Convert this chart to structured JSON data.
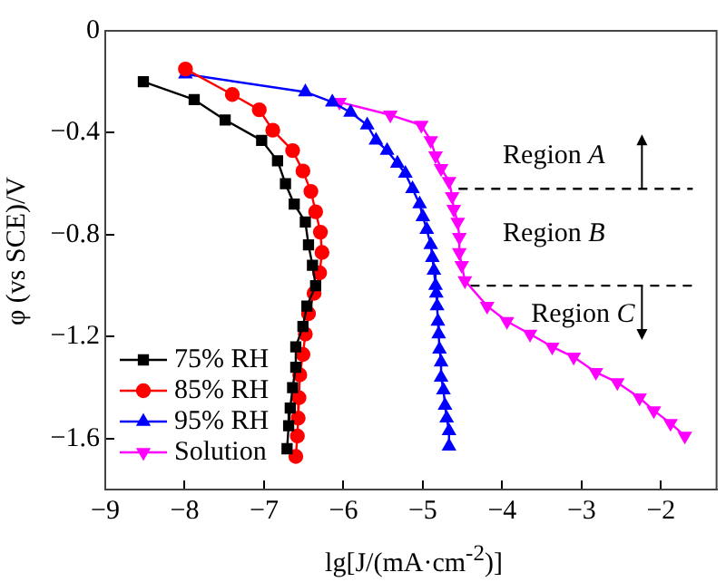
{
  "chart_data": {
    "type": "line",
    "xlabel": "lg[J/(mA·cm$^{-2}$)]",
    "ylabel": "φ (vs SCE)/V",
    "xlim": [
      -9,
      -1.3
    ],
    "xticks": [
      -9,
      -8,
      -7,
      -6,
      -5,
      -4,
      -3,
      -2
    ],
    "ylim": [
      -1.8,
      0
    ],
    "yticks": [
      0,
      -0.4,
      -0.8,
      -1.2,
      -1.6
    ],
    "grid": false,
    "legend": "bottom left",
    "series": [
      {
        "name": "75% RH",
        "color": "#000000",
        "marker": "square",
        "x": [
          -8.52,
          -7.88,
          -7.49,
          -7.03,
          -6.83,
          -6.73,
          -6.62,
          -6.48,
          -6.44,
          -6.39,
          -6.35,
          -6.46,
          -6.51,
          -6.6,
          -6.6,
          -6.64,
          -6.67,
          -6.69,
          -6.71
        ],
        "values": [
          -0.2,
          -0.27,
          -0.35,
          -0.43,
          -0.51,
          -0.6,
          -0.68,
          -0.75,
          -0.84,
          -0.92,
          -1.0,
          -1.08,
          -1.16,
          -1.24,
          -1.32,
          -1.4,
          -1.48,
          -1.55,
          -1.64
        ]
      },
      {
        "name": "85% RH",
        "color": "#ff0000",
        "marker": "circle",
        "x": [
          -7.99,
          -7.4,
          -7.06,
          -6.89,
          -6.64,
          -6.51,
          -6.41,
          -6.35,
          -6.29,
          -6.27,
          -6.3,
          -6.37,
          -6.44,
          -6.48,
          -6.51,
          -6.55,
          -6.56,
          -6.57,
          -6.58,
          -6.6
        ],
        "values": [
          -0.15,
          -0.25,
          -0.31,
          -0.39,
          -0.47,
          -0.55,
          -0.63,
          -0.71,
          -0.79,
          -0.87,
          -0.95,
          -1.03,
          -1.11,
          -1.19,
          -1.27,
          -1.35,
          -1.44,
          -1.52,
          -1.59,
          -1.67
        ]
      },
      {
        "name": "95% RH",
        "color": "#0000ff",
        "marker": "triangle",
        "x": [
          -7.99,
          -6.48,
          -6.14,
          -5.91,
          -5.7,
          -5.59,
          -5.45,
          -5.32,
          -5.22,
          -5.13,
          -5.04,
          -5.0,
          -4.95,
          -4.9,
          -4.88,
          -4.86,
          -4.84,
          -4.83,
          -4.82,
          -4.81,
          -4.8,
          -4.79,
          -4.77,
          -4.77,
          -4.74,
          -4.72,
          -4.7,
          -4.67,
          -4.67
        ],
        "values": [
          -0.17,
          -0.24,
          -0.28,
          -0.32,
          -0.37,
          -0.43,
          -0.47,
          -0.52,
          -0.56,
          -0.62,
          -0.68,
          -0.73,
          -0.78,
          -0.84,
          -0.89,
          -0.94,
          -1.0,
          -1.03,
          -1.08,
          -1.14,
          -1.19,
          -1.25,
          -1.3,
          -1.36,
          -1.41,
          -1.47,
          -1.52,
          -1.57,
          -1.63
        ]
      },
      {
        "name": "Solution",
        "color": "#ff00ff",
        "marker": "triangle-down",
        "x": [
          -6.05,
          -5.41,
          -5.02,
          -4.9,
          -4.84,
          -4.77,
          -4.67,
          -4.63,
          -4.61,
          -4.56,
          -4.54,
          -4.54,
          -4.51,
          -4.47,
          -4.19,
          -3.94,
          -3.65,
          -3.37,
          -3.1,
          -2.82,
          -2.55,
          -2.27,
          -2.09,
          -1.88,
          -1.7
        ],
        "values": [
          -0.28,
          -0.33,
          -0.37,
          -0.43,
          -0.49,
          -0.54,
          -0.59,
          -0.65,
          -0.7,
          -0.75,
          -0.81,
          -0.87,
          -0.92,
          -0.98,
          -1.08,
          -1.14,
          -1.19,
          -1.24,
          -1.28,
          -1.34,
          -1.38,
          -1.44,
          -1.49,
          -1.54,
          -1.59
        ]
      },
      {
        "type": "line",
        "color": "#000000",
        "line_style": "dashed",
        "marker": "none",
        "x": [
          -4.55,
          -1.6
        ],
        "values": [
          -0.62,
          -0.62
        ]
      },
      {
        "type": "line",
        "color": "#000000",
        "line_style": "dashed",
        "marker": "none",
        "x": [
          -4.4,
          -1.6
        ],
        "values": [
          -1.0,
          -1.0
        ]
      }
    ],
    "annotations": [
      "Region A",
      "Region B",
      "Region C"
    ]
  }
}
